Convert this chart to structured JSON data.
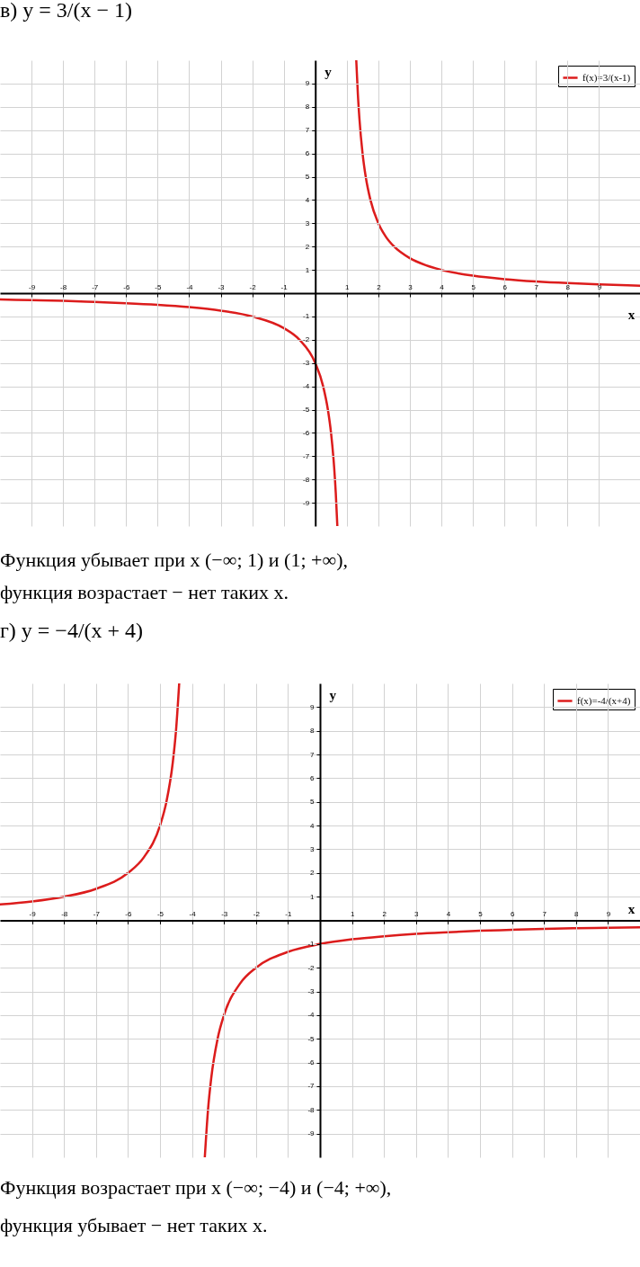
{
  "chart_data": [
    {
      "type": "line",
      "title": "в) y = 3/(x − 1)",
      "xlabel": "x",
      "ylabel": "y",
      "xlim": [
        -10,
        10.3
      ],
      "ylim": [
        -10,
        10
      ],
      "xticks": [
        -9,
        -8,
        -7,
        -6,
        -5,
        -4,
        -3,
        -2,
        -1,
        1,
        2,
        3,
        4,
        5,
        6,
        7,
        8,
        9
      ],
      "yticks": [
        -9,
        -8,
        -7,
        -6,
        -5,
        -4,
        -3,
        -2,
        -1,
        1,
        2,
        3,
        4,
        5,
        6,
        7,
        8,
        9
      ],
      "grid": true,
      "legend": "top right",
      "series": [
        {
          "name": "f(x)=3/(x-1)",
          "color": "#dc1c1c",
          "x": [
            -10,
            -9,
            -8,
            -7,
            -6,
            -5,
            -4,
            -3,
            -2,
            -1,
            -0.5,
            0,
            0.25,
            0.4,
            0.5,
            0.6,
            0.65,
            0.7,
            1,
            1.3,
            1.35,
            1.4,
            1.5,
            1.6,
            1.75,
            2,
            2.25,
            2.5,
            3,
            3.5,
            4,
            5,
            6,
            7,
            8,
            9,
            10.3
          ],
          "values": [
            -0.27,
            -0.3,
            -0.33,
            -0.38,
            -0.43,
            -0.5,
            -0.6,
            -0.75,
            -1,
            -1.5,
            -2,
            -3,
            -4,
            -5,
            -6,
            -7.5,
            -8.57,
            -10,
            null,
            10,
            8.57,
            7.5,
            6,
            5,
            4,
            3,
            2.4,
            2,
            1.5,
            1.2,
            1,
            0.75,
            0.6,
            0.5,
            0.43,
            0.38,
            0.32
          ]
        }
      ],
      "annotations": [
        "Функция убывает при x (−∞; 1) и (1; +∞),",
        "функция возрастает − нет таких x."
      ]
    },
    {
      "type": "line",
      "title": "г) y = −4/(x + 4)",
      "xlabel": "x",
      "ylabel": "y",
      "xlim": [
        -10,
        10
      ],
      "ylim": [
        -10,
        10
      ],
      "xticks": [
        -9,
        -8,
        -7,
        -6,
        -5,
        -4,
        -3,
        -2,
        -1,
        1,
        2,
        3,
        4,
        5,
        6,
        7,
        8,
        9
      ],
      "yticks": [
        -9,
        -8,
        -7,
        -6,
        -5,
        -4,
        -3,
        -2,
        -1,
        1,
        2,
        3,
        4,
        5,
        6,
        7,
        8,
        9
      ],
      "grid": true,
      "legend": "top right",
      "series": [
        {
          "name": "f(x)=-4/(x+4)",
          "color": "#dc1c1c",
          "x": [
            -10,
            -9,
            -8,
            -7,
            -6,
            -5.5,
            -5,
            -4.8,
            -4.6,
            -4.5,
            -4.4,
            -4,
            -3.6,
            -3.5,
            -3.4,
            -3.2,
            -3,
            -2.5,
            -2,
            -1,
            0,
            1,
            2,
            3,
            4,
            5,
            6,
            7,
            8,
            9,
            10
          ],
          "values": [
            0.67,
            0.8,
            1,
            1.33,
            2,
            2.67,
            4,
            5,
            6.67,
            8,
            10,
            null,
            -10,
            -8,
            -6.67,
            -5,
            -4,
            -2.67,
            -2,
            -1.33,
            -1,
            -0.8,
            -0.67,
            -0.57,
            -0.5,
            -0.44,
            -0.4,
            -0.36,
            -0.33,
            -0.31,
            -0.29
          ]
        }
      ],
      "annotations": [
        "Функция возрастает при x (−∞; −4) и (−4; +∞),",
        "функция убывает − нет таких x."
      ]
    }
  ]
}
